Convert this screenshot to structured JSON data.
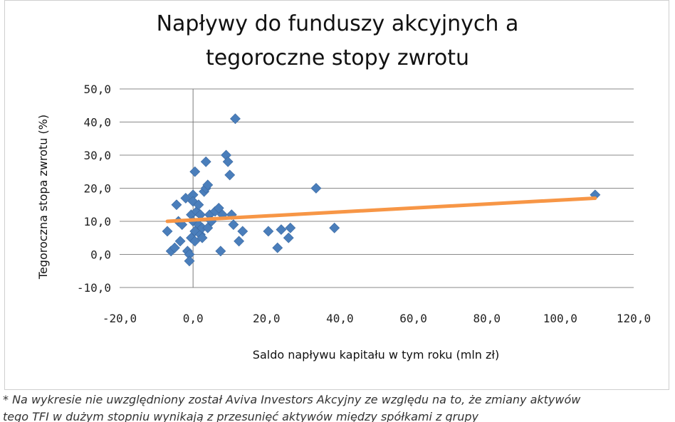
{
  "chart_data": {
    "type": "scatter",
    "title_lines": [
      "Napływy do funduszy akcyjnych a",
      "tegoroczne stopy zwrotu"
    ],
    "xlabel": "Saldo napływu kapitału w tym roku (mln zł)",
    "ylabel": "Tegoroczna stopa zwrotu (%)",
    "xlim": [
      -20,
      120
    ],
    "ylim": [
      -10,
      50
    ],
    "x_ticks": [
      -20,
      0,
      20,
      40,
      60,
      80,
      100,
      120
    ],
    "x_tick_labels": [
      "-20,0",
      "0,0",
      "20,0",
      "40,0",
      "60,0",
      "80,0",
      "100,0",
      "120,0"
    ],
    "y_ticks": [
      -10,
      0,
      10,
      20,
      30,
      40,
      50
    ],
    "y_tick_labels": [
      "-10,0",
      "0,0",
      "10,0",
      "20,0",
      "30,0",
      "40,0",
      "50,0"
    ],
    "grid": "horizontal",
    "legend": "none",
    "series": [
      {
        "marker": "diamond",
        "color": "#4a7ebb",
        "points": [
          [
            -7,
            7
          ],
          [
            -6,
            1
          ],
          [
            -5,
            2
          ],
          [
            -4.5,
            15
          ],
          [
            -4,
            10
          ],
          [
            -3.5,
            4
          ],
          [
            -3,
            9
          ],
          [
            -2,
            17
          ],
          [
            -1.5,
            1
          ],
          [
            -1,
            0
          ],
          [
            -1,
            -2
          ],
          [
            -0.5,
            12
          ],
          [
            -0.5,
            5
          ],
          [
            0,
            18
          ],
          [
            0,
            16
          ],
          [
            0,
            10
          ],
          [
            0.5,
            25
          ],
          [
            0.5,
            7
          ],
          [
            0.5,
            4
          ],
          [
            1,
            13
          ],
          [
            1.5,
            15
          ],
          [
            1.5,
            9
          ],
          [
            2,
            12
          ],
          [
            2,
            6
          ],
          [
            2.5,
            8
          ],
          [
            2.5,
            5
          ],
          [
            3,
            19
          ],
          [
            3.5,
            28
          ],
          [
            3.5,
            20
          ],
          [
            4,
            21
          ],
          [
            4,
            8
          ],
          [
            4.5,
            12
          ],
          [
            5,
            10
          ],
          [
            6,
            13
          ],
          [
            7,
            14
          ],
          [
            7.5,
            1
          ],
          [
            8,
            12
          ],
          [
            9,
            30
          ],
          [
            9.5,
            28
          ],
          [
            10,
            24
          ],
          [
            10.5,
            12
          ],
          [
            11,
            9
          ],
          [
            11.5,
            41
          ],
          [
            12.5,
            4
          ],
          [
            13.5,
            7
          ],
          [
            20.5,
            7
          ],
          [
            23,
            2
          ],
          [
            24,
            7.5
          ],
          [
            26,
            5
          ],
          [
            26.5,
            8
          ],
          [
            33.5,
            20
          ],
          [
            38.5,
            8
          ],
          [
            109.5,
            18
          ]
        ]
      }
    ],
    "trendline": {
      "type": "linear",
      "color": "#f79646",
      "x": [
        -7,
        109.5
      ],
      "y": [
        10,
        17
      ]
    }
  },
  "footnote": {
    "line1": "* Na wykresie nie uwzględniony został Aviva Investors Akcyjny ze względu na to, że zmiany aktywów",
    "line2": "tego TFI w dużym stopniu wynikają z przesunięć aktywów między spółkami z grupy"
  }
}
